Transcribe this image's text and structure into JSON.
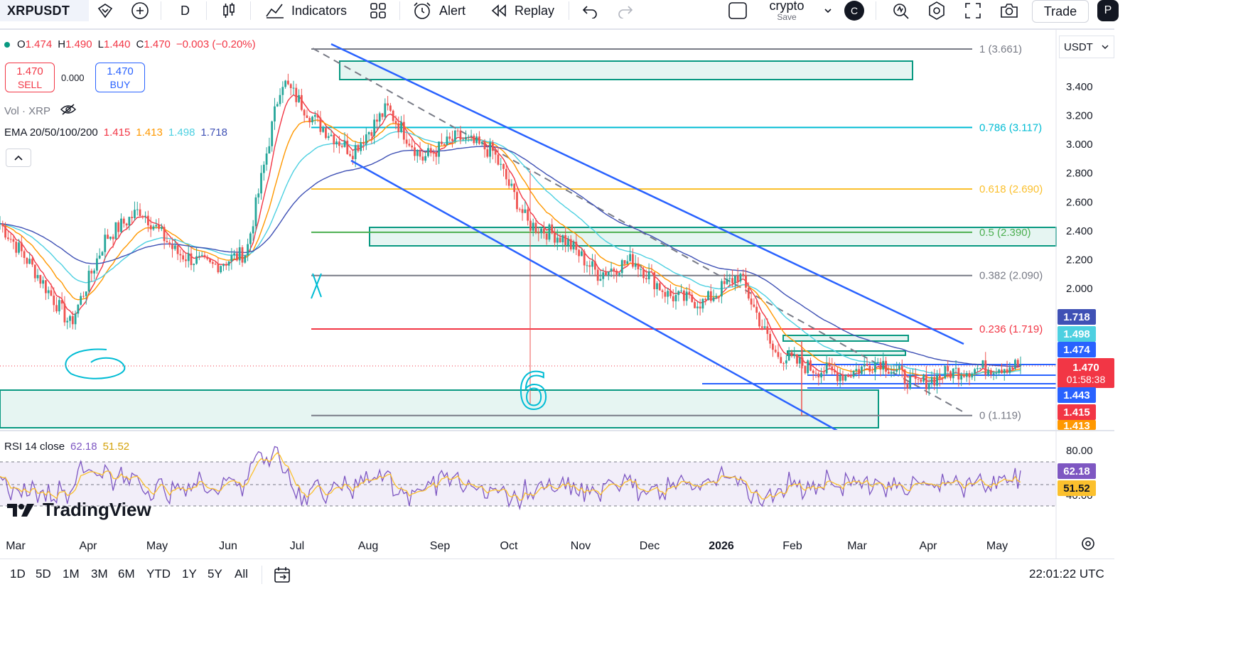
{
  "toolbar": {
    "symbol": "XRPUSDT",
    "interval": "D",
    "indicators": "Indicators",
    "alert": "Alert",
    "replay": "Replay",
    "layout_name": "crypto",
    "layout_save": "Save",
    "avatar_letter": "C",
    "trade": "Trade",
    "p_letter": "P"
  },
  "legend": {
    "ohlc": [
      {
        "label": "O",
        "value": "1.474"
      },
      {
        "label": "H",
        "value": "1.490"
      },
      {
        "label": "L",
        "value": "1.440"
      },
      {
        "label": "C",
        "value": "1.470"
      }
    ],
    "change": "−0.003 (−0.20%)",
    "sell_price": "1.470",
    "sell_label": "SELL",
    "spread": "0.000",
    "buy_price": "1.470",
    "buy_label": "BUY",
    "vol_label": "Vol · XRP",
    "ema_label": "EMA 20/50/100/200",
    "ema_values": [
      "1.415",
      "1.413",
      "1.498",
      "1.718"
    ],
    "rsi_label": "RSI 14 close",
    "rsi_values": [
      "62.18",
      "51.52"
    ]
  },
  "price_axis_currency": "USDT",
  "countdown": "01:58:38",
  "colors": {
    "ema20": "#f23645",
    "ema50": "#ff9800",
    "ema100": "#4dd0e1",
    "ema200": "#3f51b5",
    "candle_up": "#26a69a",
    "candle_down": "#ef5350",
    "channel": "#2962ff",
    "fib_1": "#787b86",
    "fib_0786": "#00bcd4",
    "fib_0618": "#fbc02d",
    "fib_05": "#4caf50",
    "fib_0382": "#787b86",
    "fib_0236": "#f23645",
    "fib_0": "#787b86",
    "zone": "#089981",
    "rsi_line": "#7e57c2",
    "rsi_ma": "#fbc02d"
  },
  "chart_data": {
    "type": "candlestick",
    "symbol": "XRPUSDT",
    "interval": "1D",
    "x_ticks": [
      "Mar",
      "Apr",
      "May",
      "Jun",
      "Jul",
      "Aug",
      "Sep",
      "Oct",
      "Nov",
      "Dec",
      "2026",
      "Feb",
      "Mar",
      "Apr",
      "May"
    ],
    "y_ticks": [
      "3.400",
      "3.200",
      "3.000",
      "2.800",
      "2.600",
      "2.400",
      "2.200",
      "2.000"
    ],
    "price_close_series": [
      {
        "month": "Mar",
        "close": 2.45
      },
      {
        "month": "Apr",
        "close": 2.12
      },
      {
        "month": "Apr-mid",
        "close": 1.75
      },
      {
        "month": "May",
        "close": 2.35
      },
      {
        "month": "May-mid",
        "close": 2.55
      },
      {
        "month": "Jun",
        "close": 2.25
      },
      {
        "month": "Jun-mid",
        "close": 2.15
      },
      {
        "month": "Jul",
        "close": 2.25
      },
      {
        "month": "Jul-mid",
        "close": 3.45
      },
      {
        "month": "Jul-end",
        "close": 3.15
      },
      {
        "month": "Aug",
        "close": 2.95
      },
      {
        "month": "Aug-mid",
        "close": 3.25
      },
      {
        "month": "Sep",
        "close": 2.9
      },
      {
        "month": "Sep-mid",
        "close": 3.05
      },
      {
        "month": "Oct",
        "close": 2.95
      },
      {
        "month": "Oct-mid",
        "close": 2.45
      },
      {
        "month": "Nov",
        "close": 2.35
      },
      {
        "month": "Nov-mid",
        "close": 2.1
      },
      {
        "month": "Dec",
        "close": 2.2
      },
      {
        "month": "Dec-mid",
        "close": 1.95
      },
      {
        "month": "2026",
        "close": 1.9
      },
      {
        "month": "Jan-mid",
        "close": 2.1
      },
      {
        "month": "Feb",
        "close": 1.55
      },
      {
        "month": "Feb-mid",
        "close": 1.45
      },
      {
        "month": "Mar",
        "close": 1.4
      },
      {
        "month": "Mar-mid",
        "close": 1.5
      },
      {
        "month": "Apr",
        "close": 1.33
      },
      {
        "month": "Apr-mid",
        "close": 1.42
      },
      {
        "month": "May",
        "close": 1.45
      },
      {
        "month": "May-now",
        "close": 1.47
      }
    ],
    "fibonacci": [
      {
        "level": "1",
        "price": 3.661,
        "label": "1 (3.661)"
      },
      {
        "level": "0.786",
        "price": 3.117,
        "label": "0.786 (3.117)"
      },
      {
        "level": "0.618",
        "price": 2.69,
        "label": "0.618 (2.690)"
      },
      {
        "level": "0.5",
        "price": 2.39,
        "label": "0.5 (2.390)"
      },
      {
        "level": "0.382",
        "price": 2.09,
        "label": "0.382 (2.090)"
      },
      {
        "level": "0.236",
        "price": 1.719,
        "label": "0.236 (1.719)"
      },
      {
        "level": "0",
        "price": 1.119,
        "label": "0 (1.119)"
      }
    ],
    "price_labels": [
      {
        "value": "1.718",
        "color": "#3f51b5",
        "price": 1.718
      },
      {
        "value": "1.498",
        "color": "#4dd0e1",
        "price": 1.498
      },
      {
        "value": "1.474",
        "color": "#2962ff",
        "price": 1.474
      },
      {
        "value": "1.470",
        "color": "#f23645",
        "price": 1.47
      },
      {
        "value": "1.443",
        "color": "#2962ff",
        "price": 1.443
      },
      {
        "value": "1.415",
        "color": "#f23645",
        "price": 1.415
      },
      {
        "value": "1.413",
        "color": "#ff9800",
        "price": 1.413
      }
    ],
    "ema": {
      "ema20": 1.415,
      "ema50": 1.413,
      "ema100": 1.498,
      "ema200": 1.718
    },
    "rsi": {
      "y_ticks": [
        "80.00",
        "40.00"
      ],
      "rsi": 62.18,
      "rsi_ma": 51.52,
      "overbought": 70,
      "oversold": 30
    },
    "annotations": [
      "6"
    ]
  },
  "bottom": {
    "ranges": [
      "1D",
      "5D",
      "1M",
      "3M",
      "6M",
      "YTD",
      "1Y",
      "5Y",
      "All"
    ],
    "time": "22:01:22 UTC"
  },
  "logo": "TradingView"
}
